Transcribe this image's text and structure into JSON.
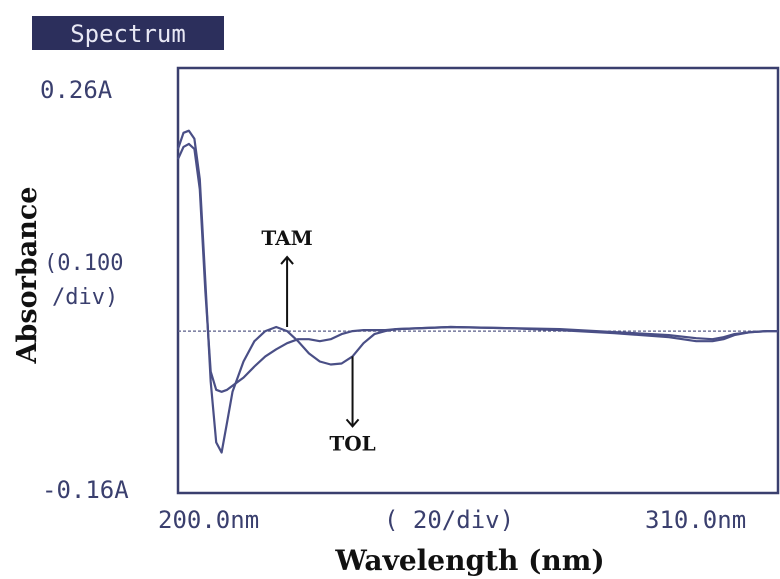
{
  "chart_data": {
    "type": "line",
    "title": "Spectrum",
    "xlabel": "Wavelength (nm)",
    "ylabel": "Absorbance",
    "x_tick_left": "200.0nm",
    "x_tick_center": "( 20/div)",
    "x_tick_right": "310.0nm",
    "y_tick_top": "0.26A",
    "y_tick_mid": "(0.100\n/div)",
    "y_tick_mid_line1": "(0.100",
    "y_tick_mid_line2": "/div)",
    "y_tick_bottom": "-0.16A",
    "xlim": [
      200,
      310
    ],
    "ylim": [
      -0.16,
      0.26
    ],
    "grid": false,
    "series": [
      {
        "name": "TAM",
        "color": "#4a4f86",
        "x": [
          200,
          201,
          202,
          203,
          204,
          205,
          206,
          207,
          208,
          209,
          210,
          212,
          214,
          216,
          218,
          220,
          222,
          224,
          226,
          228,
          230,
          232,
          234,
          236,
          238,
          240,
          250,
          260,
          270,
          280,
          290,
          295,
          298,
          300,
          302,
          305,
          308,
          310
        ],
        "y": [
          0.18,
          0.196,
          0.198,
          0.19,
          0.15,
          0.05,
          -0.05,
          -0.11,
          -0.12,
          -0.09,
          -0.06,
          -0.03,
          -0.01,
          0.0,
          0.004,
          0.0,
          -0.01,
          -0.022,
          -0.03,
          -0.033,
          -0.032,
          -0.025,
          -0.012,
          -0.003,
          0.0,
          0.002,
          0.004,
          0.003,
          0.001,
          -0.002,
          -0.006,
          -0.01,
          -0.01,
          -0.008,
          -0.004,
          -0.001,
          0.0,
          0.0
        ]
      },
      {
        "name": "TOL",
        "color": "#4a4f86",
        "x": [
          200,
          201,
          202,
          203,
          204,
          205,
          206,
          207,
          208,
          209,
          210,
          212,
          214,
          216,
          218,
          220,
          222,
          224,
          226,
          228,
          230,
          232,
          234,
          236,
          238,
          240,
          250,
          260,
          270,
          280,
          290,
          295,
          298,
          300,
          302,
          305,
          308,
          310
        ],
        "y": [
          0.17,
          0.182,
          0.185,
          0.18,
          0.14,
          0.04,
          -0.04,
          -0.058,
          -0.06,
          -0.058,
          -0.054,
          -0.046,
          -0.035,
          -0.025,
          -0.018,
          -0.012,
          -0.008,
          -0.008,
          -0.01,
          -0.008,
          -0.003,
          0.0,
          0.001,
          0.001,
          0.001,
          0.002,
          0.004,
          0.003,
          0.002,
          -0.001,
          -0.004,
          -0.007,
          -0.008,
          -0.006,
          -0.003,
          -0.001,
          0.0,
          0.0
        ]
      }
    ],
    "baseline": 0,
    "annotations": [
      {
        "text": "TAM",
        "x": 220,
        "y": 0.004,
        "direction": "up"
      },
      {
        "text": "TOL",
        "x": 232,
        "y": -0.025,
        "direction": "down"
      }
    ]
  }
}
